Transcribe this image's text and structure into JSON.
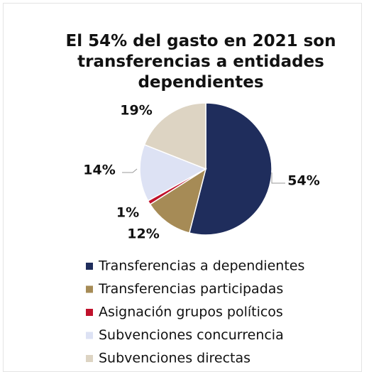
{
  "chart_data": {
    "type": "pie",
    "title": "El 54% del gasto en 2021 son transferencias a entidades dependientes",
    "categories": [
      "Transferencias a dependientes",
      "Transferencias participadas",
      "Asignación grupos políticos",
      "Subvenciones concurrencia",
      "Subvenciones directas"
    ],
    "values": [
      54,
      12,
      1,
      14,
      19
    ],
    "value_labels": [
      "54%",
      "12%",
      "1%",
      "14%",
      "19%"
    ],
    "colors": [
      "#1f2d5c",
      "#a68b56",
      "#c0112b",
      "#dde2f4",
      "#ddd4c3"
    ],
    "legend": "bottom"
  }
}
